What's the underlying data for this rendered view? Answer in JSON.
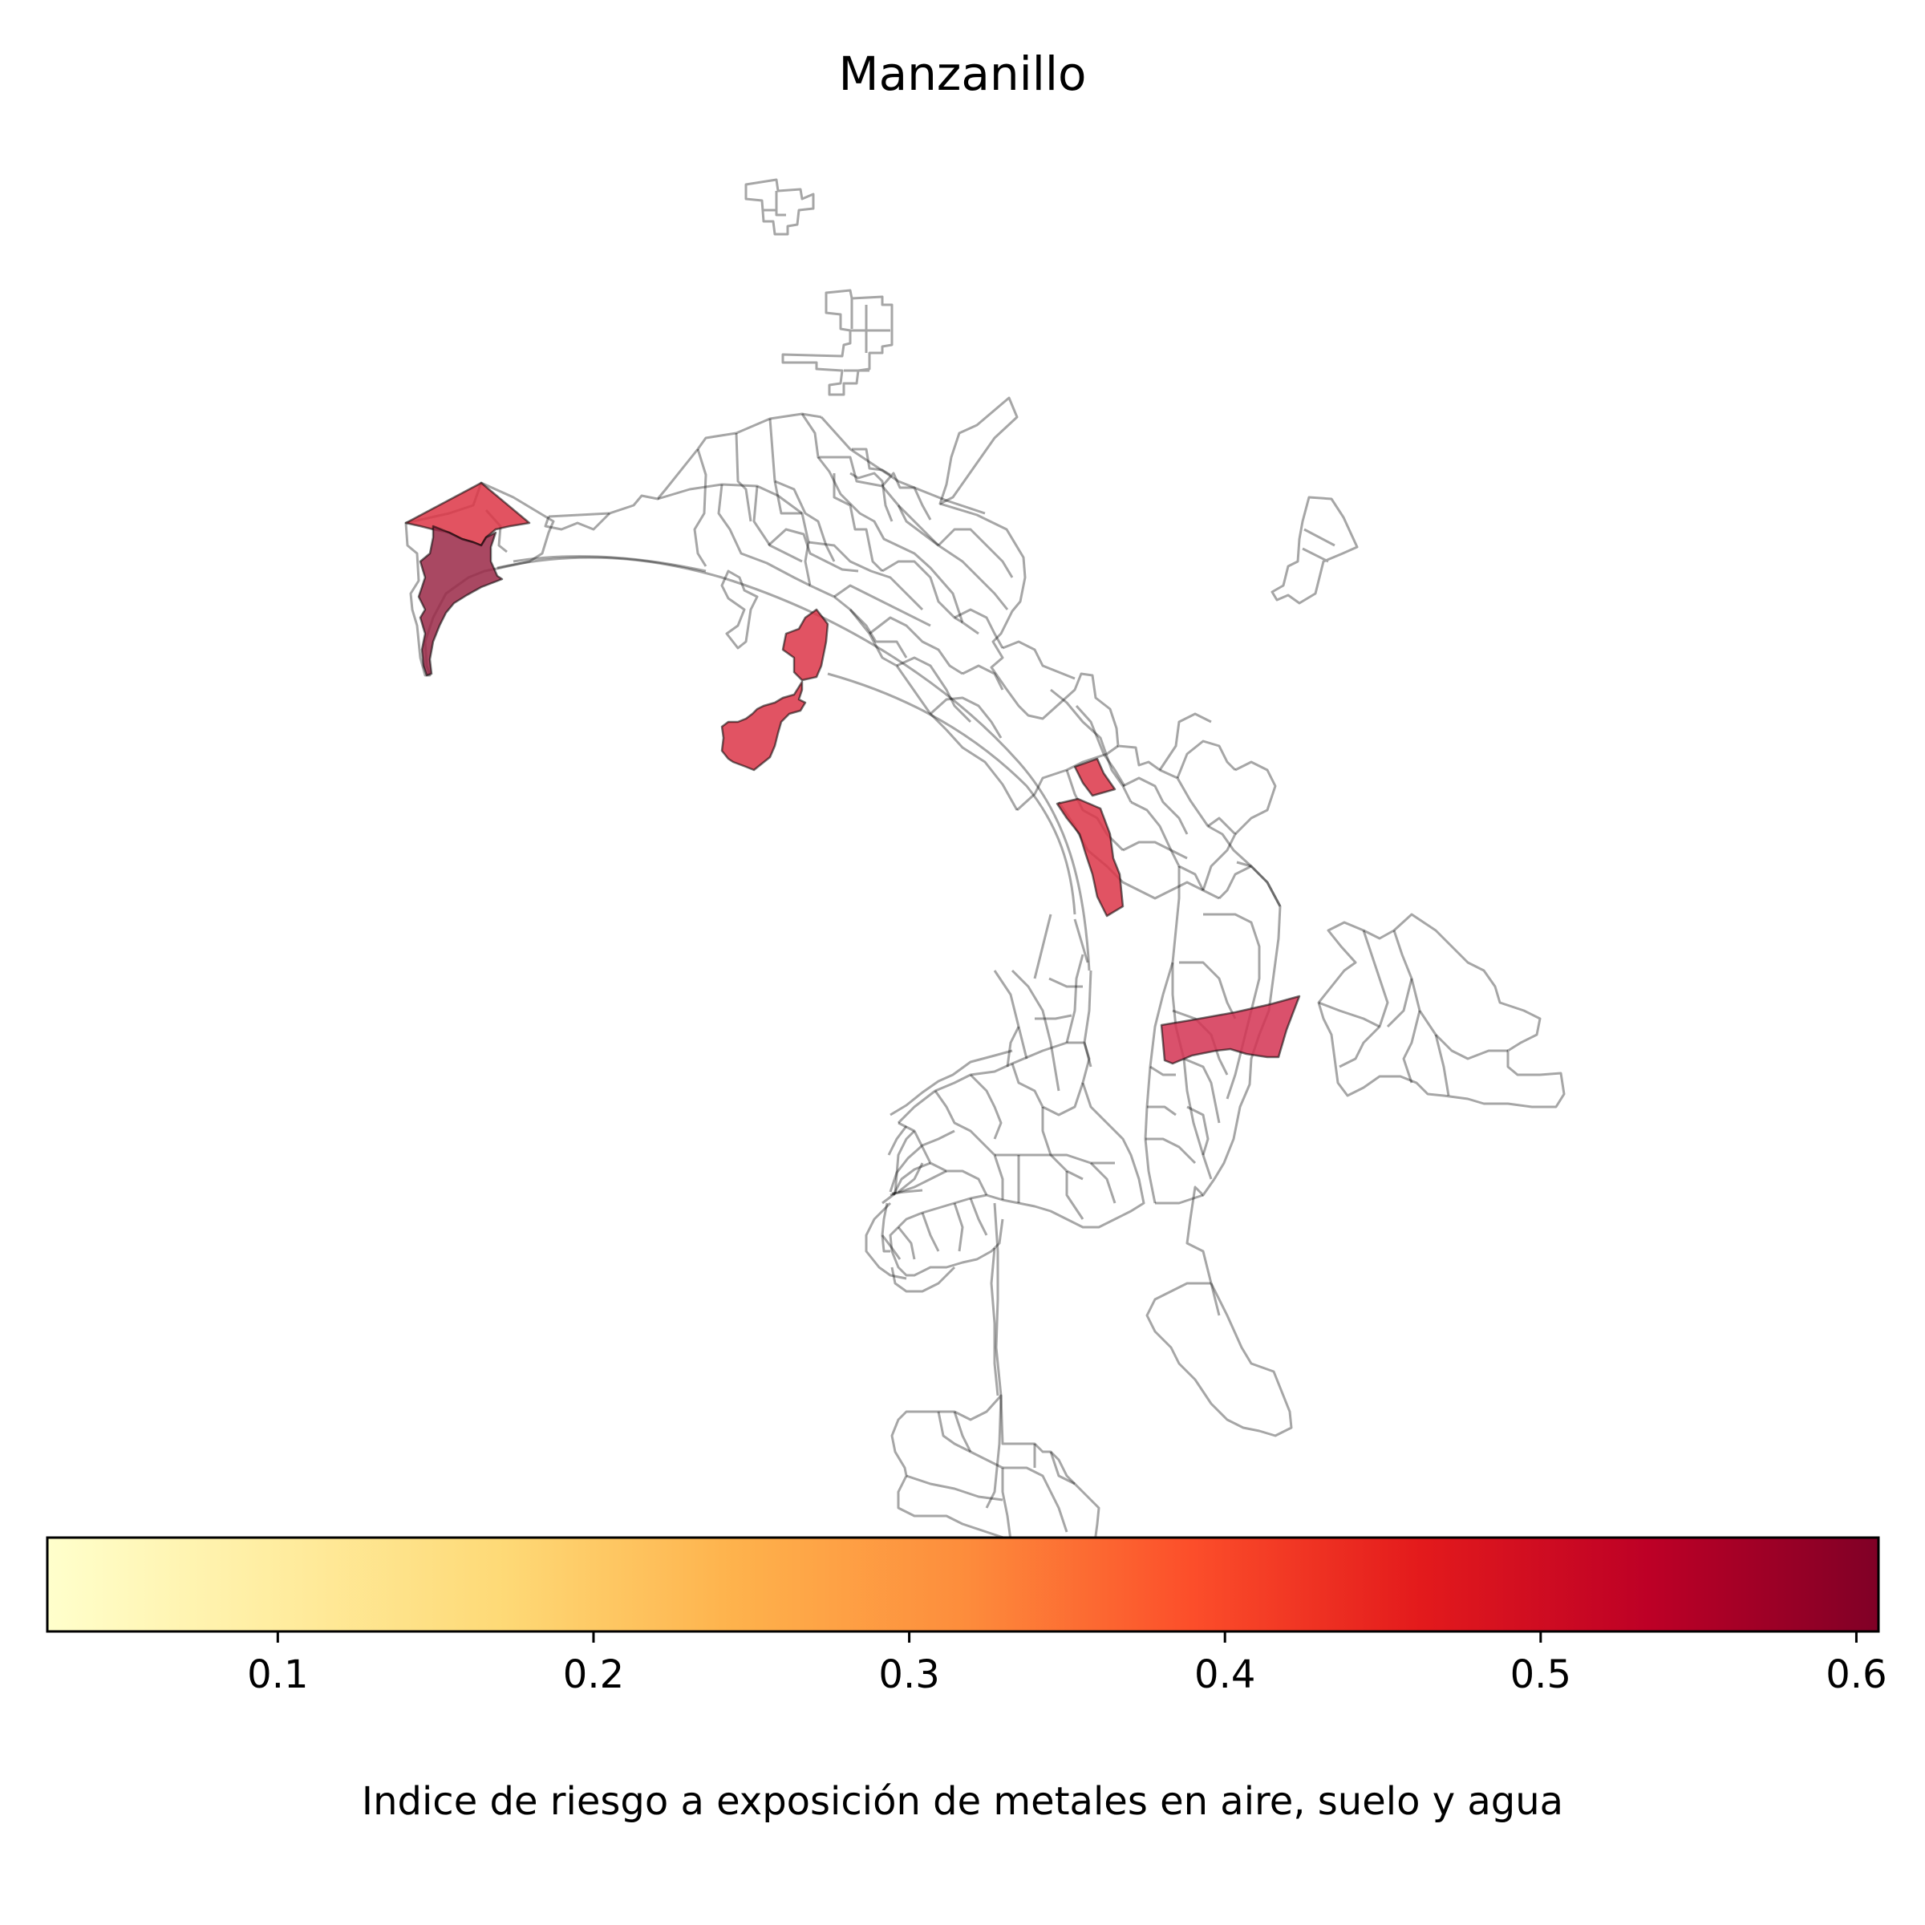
{
  "title": "Manzanillo",
  "colorbar": {
    "label": "Indice de riesgo a exposición de metales en aire, suelo y agua",
    "cmap": "YlOrRd",
    "vmin": 0.027,
    "vmax": 0.607,
    "ticks": [
      0.1,
      0.2,
      0.3,
      0.4,
      0.5,
      0.6
    ],
    "tick_labels": [
      "0.1",
      "0.2",
      "0.3",
      "0.4",
      "0.5",
      "0.6"
    ],
    "stops": [
      "#ffffcc",
      "#ffeda0",
      "#fed976",
      "#feb24c",
      "#fd8d3c",
      "#fc4e2a",
      "#e31a1c",
      "#bd0026",
      "#800026"
    ]
  },
  "map": {
    "boundary_color": "#000000",
    "boundary_opacity": 0.35,
    "highlighted_regions": [
      {
        "name": "region-west-peninsula-north",
        "value": 0.43,
        "color": "#dd3545"
      },
      {
        "name": "region-west-peninsula-south",
        "value": 0.58,
        "color": "#9a2846"
      },
      {
        "name": "region-central-north",
        "value": 0.45,
        "color": "#dc3548"
      },
      {
        "name": "region-central-island",
        "value": 0.45,
        "color": "#dc3548"
      },
      {
        "name": "region-east-small",
        "value": 0.45,
        "color": "#dc3548"
      },
      {
        "name": "region-east-strip",
        "value": 0.45,
        "color": "#dc3548"
      },
      {
        "name": "region-southeast",
        "value": 0.46,
        "color": "#d43352"
      }
    ]
  }
}
